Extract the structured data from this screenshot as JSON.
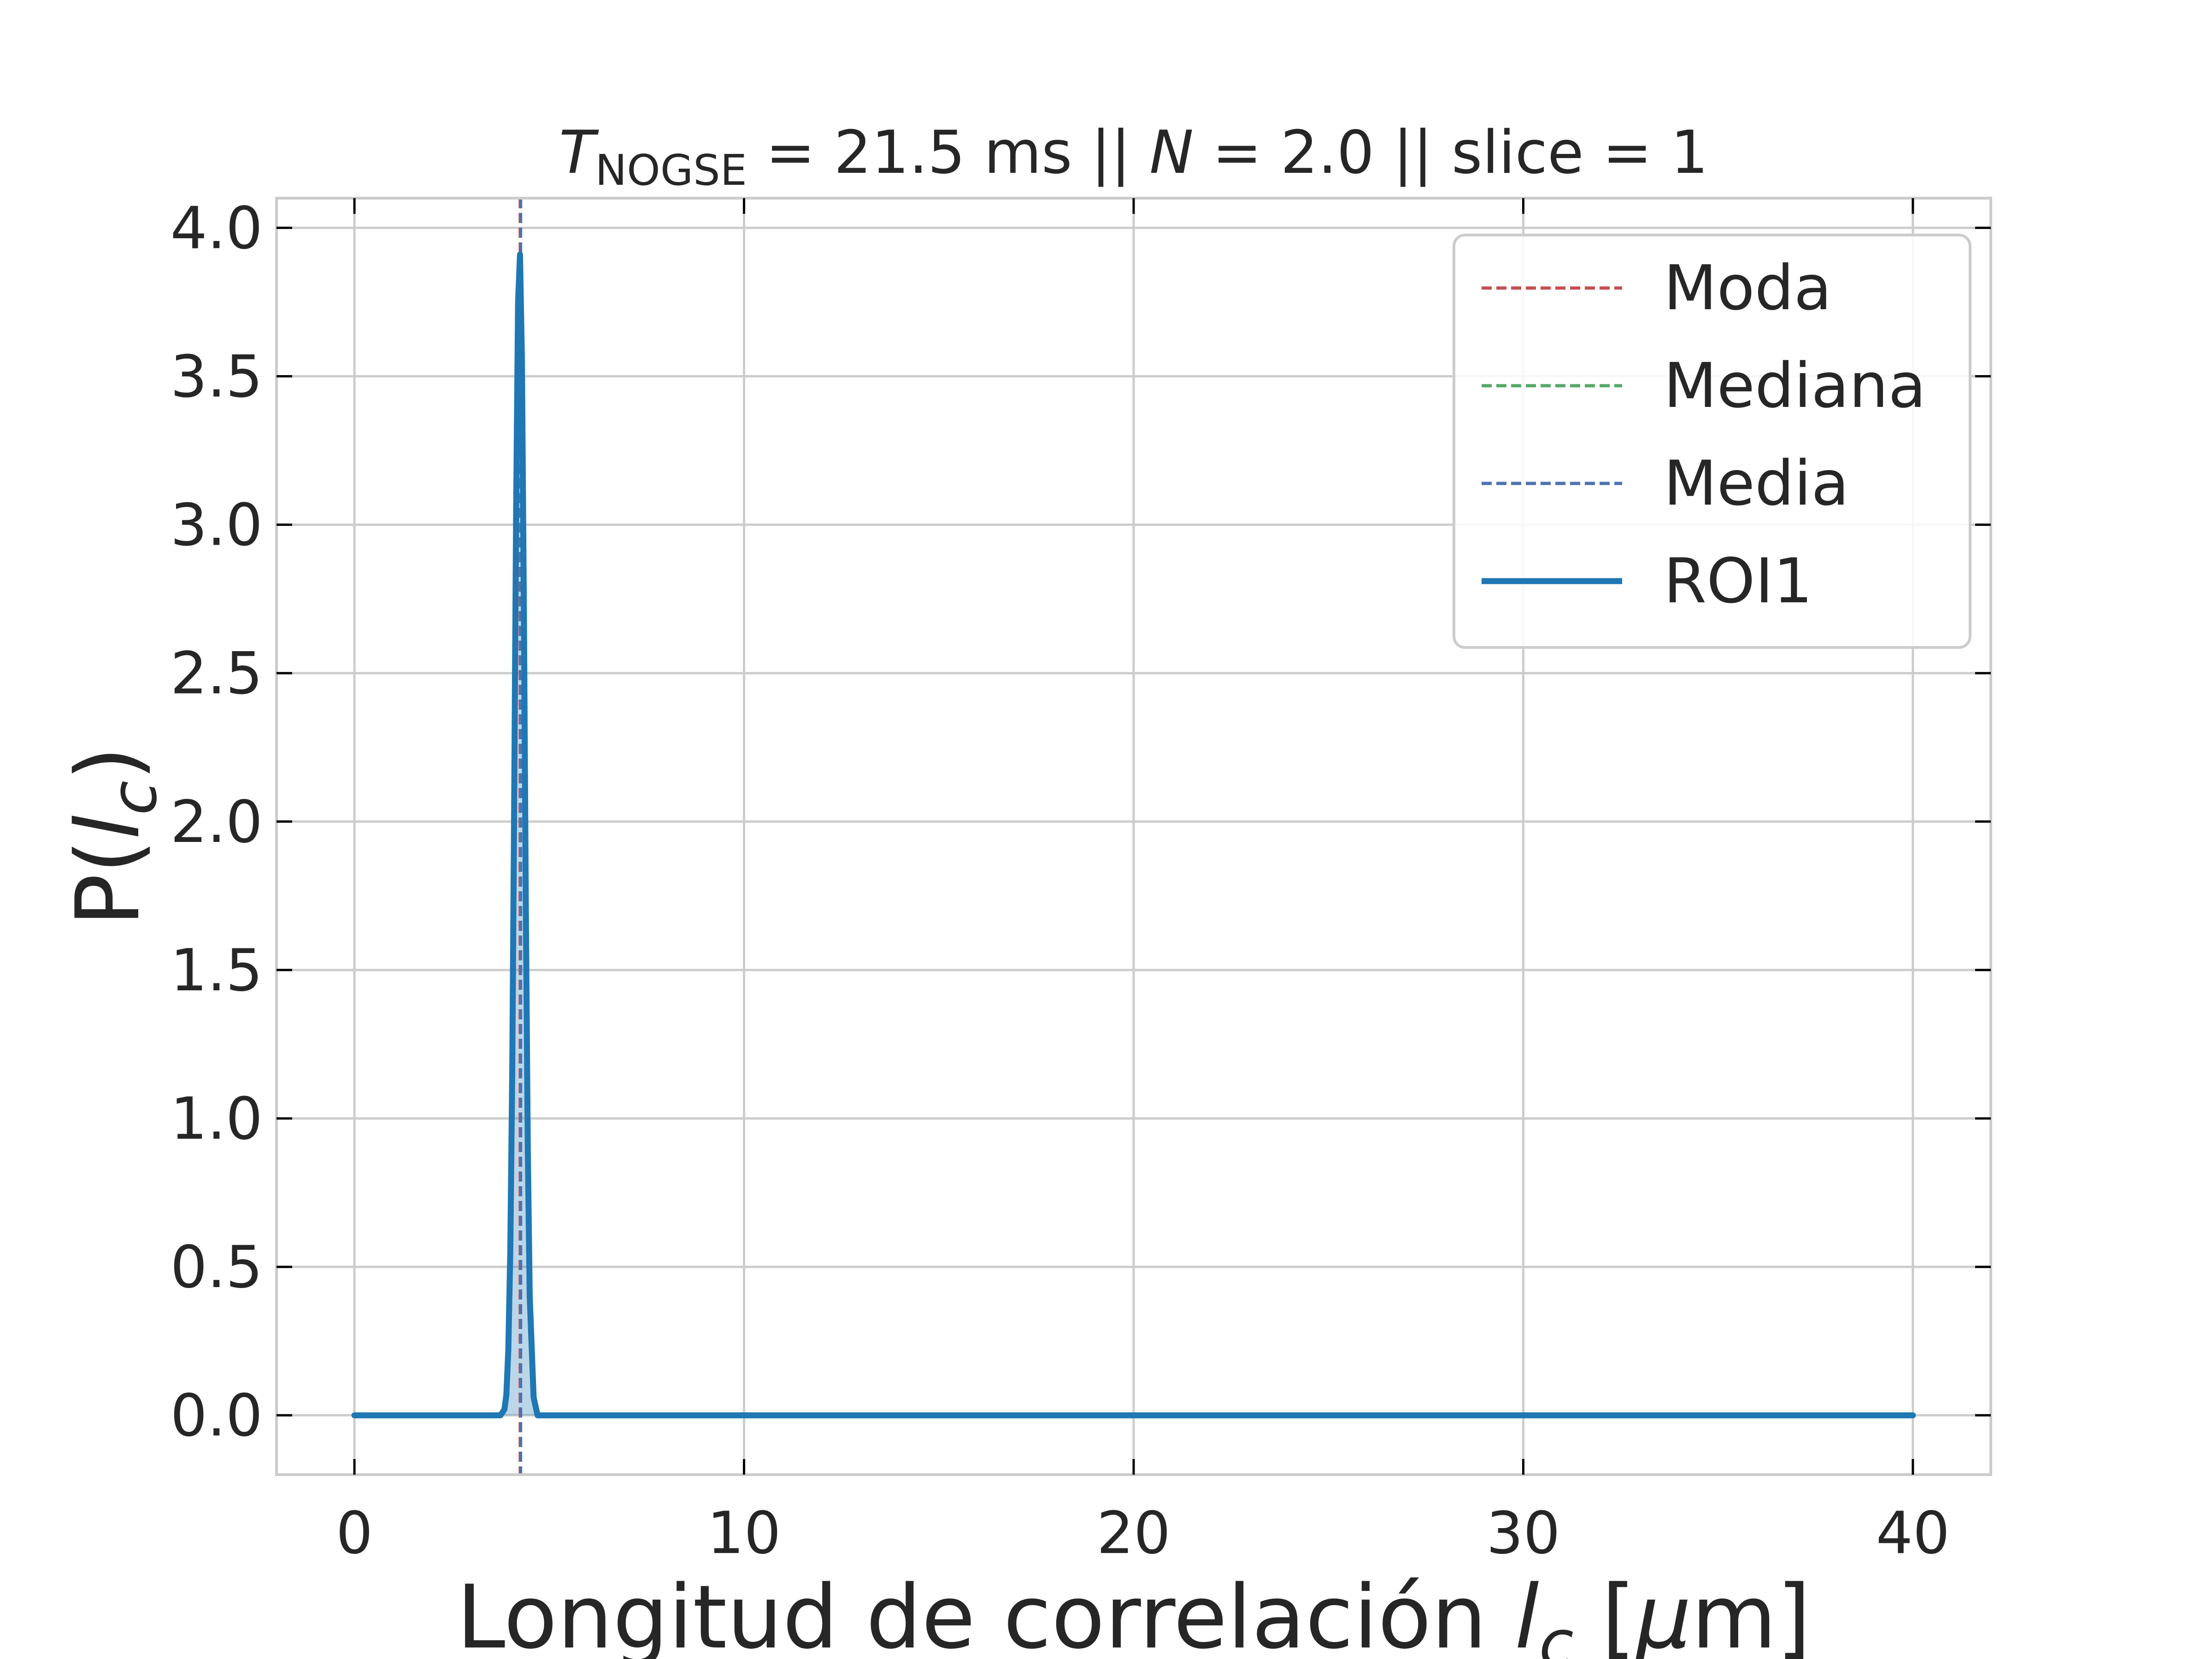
{
  "chart_data": {
    "type": "line",
    "title": {
      "parts": [
        {
          "text": "T",
          "style": "italic"
        },
        {
          "text": "NOGSE",
          "style": "subscript"
        },
        {
          "text": " = 21.5 ms  ||  ",
          "style": "normal"
        },
        {
          "text": "N",
          "style": "italic"
        },
        {
          "text": " = 2.0 || slice = 1",
          "style": "normal"
        }
      ]
    },
    "xlabel": {
      "parts": [
        {
          "text": "Longitud de correlación ",
          "style": "normal"
        },
        {
          "text": "l",
          "style": "italic"
        },
        {
          "text": "c",
          "style": "italic-subscript"
        },
        {
          "text": " [",
          "style": "normal"
        },
        {
          "text": "μ",
          "style": "italic"
        },
        {
          "text": "m]",
          "style": "normal"
        }
      ]
    },
    "ylabel": {
      "parts": [
        {
          "text": "P(",
          "style": "normal"
        },
        {
          "text": "l",
          "style": "italic"
        },
        {
          "text": "c",
          "style": "italic-subscript"
        },
        {
          "text": ")",
          "style": "normal"
        }
      ]
    },
    "xlim": [
      -2,
      42
    ],
    "ylim": [
      -0.2,
      4.1
    ],
    "xticks": [
      0,
      10,
      20,
      30,
      40
    ],
    "xtick_labels": [
      "0",
      "10",
      "20",
      "30",
      "40"
    ],
    "yticks": [
      0.0,
      0.5,
      1.0,
      1.5,
      2.0,
      2.5,
      3.0,
      3.5,
      4.0
    ],
    "ytick_labels": [
      "0.0",
      "0.5",
      "1.0",
      "1.5",
      "2.0",
      "2.5",
      "3.0",
      "3.5",
      "4.0"
    ],
    "grid": true,
    "legend_position": "upper right",
    "series": [
      {
        "name": "ROI1",
        "color": "#1f77b4",
        "style": "solid",
        "fill": true,
        "x": [
          0,
          3.75,
          3.85,
          3.9,
          3.95,
          4.0,
          4.05,
          4.1,
          4.15,
          4.2,
          4.25,
          4.3,
          4.35,
          4.4,
          4.45,
          4.5,
          4.6,
          4.7,
          40
        ],
        "y": [
          0,
          0,
          0.02,
          0.07,
          0.22,
          0.55,
          1.15,
          2.05,
          3.05,
          3.75,
          3.91,
          3.55,
          2.7,
          1.7,
          0.9,
          0.4,
          0.06,
          0,
          0
        ]
      }
    ],
    "reference_lines": [
      {
        "name": "Moda",
        "color": "#c44e52",
        "style": "dashed",
        "x": 4.25
      },
      {
        "name": "Mediana",
        "color": "#55a868",
        "style": "dashed",
        "x": 4.27
      },
      {
        "name": "Media",
        "color": "#4c72b0",
        "style": "dashed",
        "x": 4.27
      }
    ],
    "legend": [
      "Moda",
      "Mediana",
      "Media",
      "ROI1"
    ]
  }
}
